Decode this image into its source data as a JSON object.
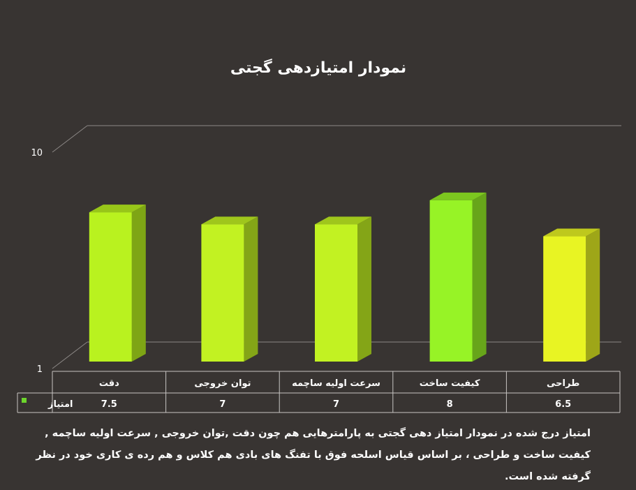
{
  "chart_data": {
    "type": "bar",
    "title": "نمودار امتیازدهی گجتی",
    "categories": [
      "دقت",
      "توان خروجی",
      "سرعت اولیه ساچمه",
      "کیفیت ساخت",
      "طراحی"
    ],
    "series": [
      {
        "name": "امتیاز",
        "values": [
          7.5,
          7,
          7,
          8,
          6.5
        ],
        "labels": [
          "7.5",
          "7",
          "7",
          "8",
          "6.5"
        ],
        "colors": [
          "#b9f21f",
          "#c2f222",
          "#c2f222",
          "#97f326",
          "#e8f423"
        ]
      }
    ],
    "ylim": [
      1,
      10
    ],
    "yticks": [
      "1",
      "10"
    ],
    "legend_marker_color": "#6dd62c",
    "grid": true,
    "data_table": true
  },
  "caption": "امتیاز درج شده در نمودار امتیاز دهی گجتی به پارامترهایی هم چون دقت ,توان خروجی , سرعت اولیه ساچمه , کیفیت ساخت و طراحی ، بر اساس قیاس اسلحه فوق با تفنگ های بادی هم کلاس و هم رده ی کاری خود در نظر گرفته شده است.",
  "colors": {
    "background": "#383432",
    "grid": "#8c8886",
    "table_lines": "#c8c5c3",
    "text": "#ffffff"
  }
}
